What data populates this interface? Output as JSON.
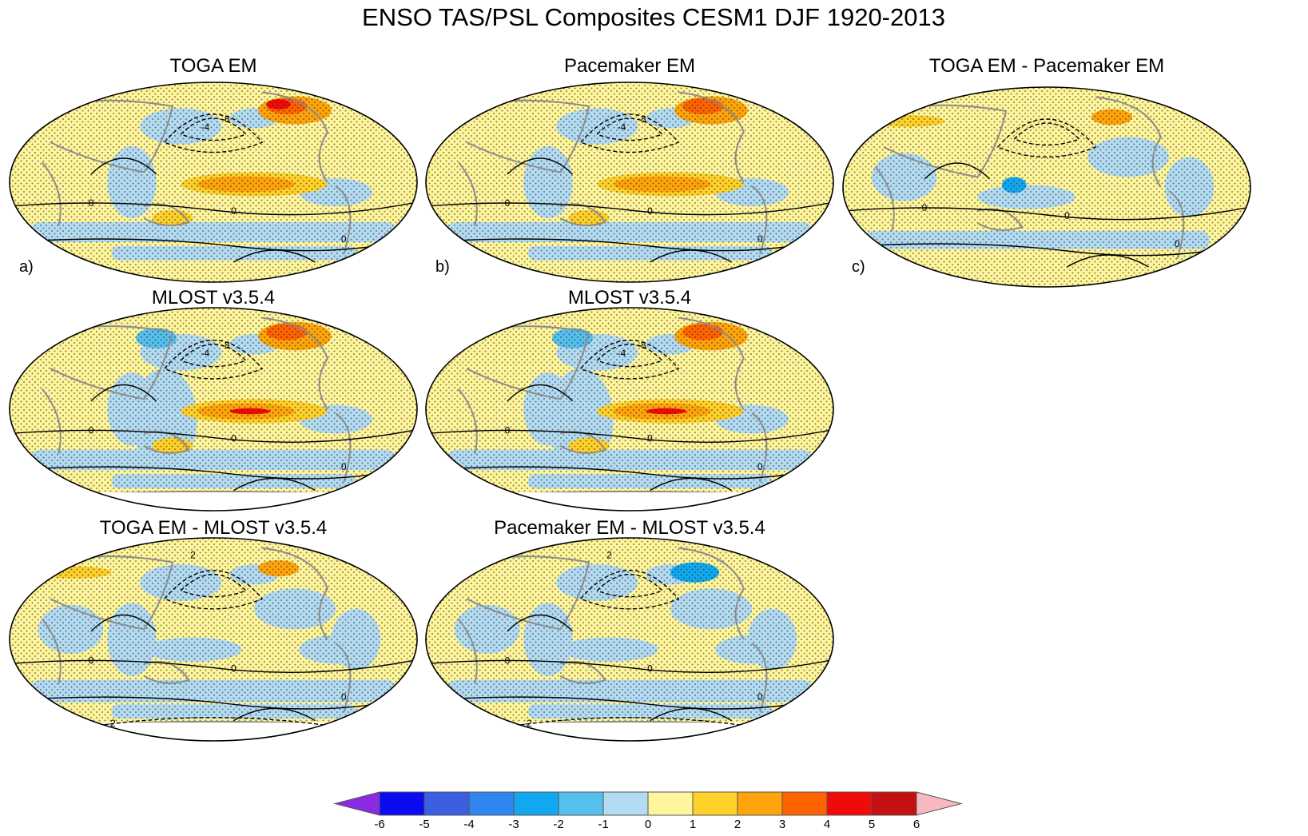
{
  "figure": {
    "title": "ENSO TAS/PSL Composites CESM1 DJF 1920-2013"
  },
  "panels": [
    {
      "id": "toga-em",
      "title": "TOGA EM",
      "label": "a)",
      "variant": "toga"
    },
    {
      "id": "pacemaker-em",
      "title": "Pacemaker EM",
      "label": "b)",
      "variant": "pace"
    },
    {
      "id": "toga-minus-pacemaker",
      "title": "TOGA EM - Pacemaker EM",
      "label": "c)",
      "variant": "diff"
    },
    {
      "id": "mlost-1",
      "title": "MLOST v3.5.4",
      "label": "",
      "variant": "mlost"
    },
    {
      "id": "mlost-2",
      "title": "MLOST v3.5.4",
      "label": "",
      "variant": "mlost"
    },
    {
      "id": "toga-minus-mlost",
      "title": "TOGA EM - MLOST v3.5.4",
      "label": "",
      "variant": "diff2"
    },
    {
      "id": "pacemaker-minus-mlost",
      "title": "Pacemaker EM - MLOST v3.5.4",
      "label": "",
      "variant": "diff3"
    }
  ],
  "colorbar": {
    "ticks": [
      "-6",
      "-5",
      "-4",
      "-3",
      "-2",
      "-1",
      "0",
      "1",
      "2",
      "3",
      "4",
      "5",
      "6"
    ],
    "low_triangle_color": "#8a2be2",
    "high_triangle_color": "#f7b8c0",
    "colors": [
      "#0b0bf0",
      "#3b5fe0",
      "#2f86f0",
      "#12a8f0",
      "#55c0ee",
      "#b3dcf3",
      "#fff59a",
      "#ffd12a",
      "#ffa40a",
      "#ff6200",
      "#f00a0a",
      "#c41010"
    ]
  },
  "palette": {
    "yellow": "#fff59a",
    "gold": "#ffd12a",
    "orange": "#ffa40a",
    "darkorange": "#ff6200",
    "red": "#f00a0a",
    "lightblue": "#b3dcf3",
    "blue": "#55c0ee",
    "deepblue": "#12a8f0",
    "land": "#8c8c8c",
    "contour": "#000000"
  },
  "contour_labels": {
    "zero": "0",
    "minus_two": "-2",
    "minus_four": "-4",
    "minus_eight": "-8",
    "two": "2"
  }
}
